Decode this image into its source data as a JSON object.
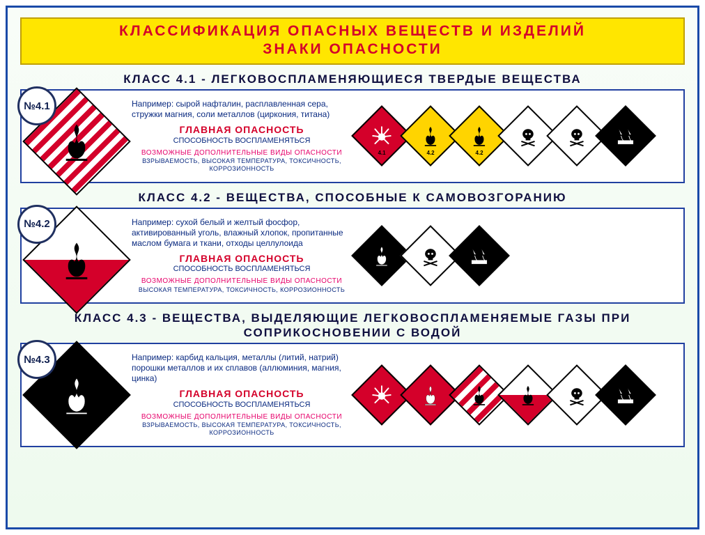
{
  "colors": {
    "frame": "#1a4aa8",
    "title_bg": "#ffe600",
    "title_text": "#d4002a",
    "header_text": "#101040",
    "panel_border": "#2040a0",
    "body_text": "#0a2a80",
    "danger_red": "#d4002a",
    "pink": "#e6006a",
    "red": "#d4002a",
    "yellow": "#ffd400",
    "black": "#000000",
    "white": "#ffffff"
  },
  "title": {
    "line1": "КЛАССИФИКАЦИЯ ОПАСНЫХ ВЕЩЕСТВ И ИЗДЕЛИЙ",
    "line2": "ЗНАКИ ОПАСНОСТИ"
  },
  "classes": [
    {
      "badge": "№4.1",
      "header": "КЛАСС 4.1 - ЛЕГКОВОСПЛАМЕНЯЮЩИЕСЯ ТВЕРДЫЕ ВЕЩЕСТВА",
      "main_sign": {
        "type": "stripes",
        "icon": "flame-black"
      },
      "example": "Например: сырой нафталин, расплавленная сера, стружки магния, соли металлов (циркония, титана)",
      "danger_h": "ГЛАВНАЯ ОПАСНОСТЬ",
      "danger_sub": "СПОСОБНОСТЬ ВОСПЛАМЕНЯТЬСЯ",
      "add_h": "ВОЗМОЖНЫЕ ДОПОЛНИТЕЛЬНЫЕ ВИДЫ ОПАСНОСТИ",
      "add_sub": "ВЗРЫВАЕМОСТЬ, ВЫСОКАЯ ТЕМПЕРАТУРА, ТОКСИЧНОСТЬ, КОРРОЗИОННОСТЬ",
      "mini_signs": [
        {
          "bg": "#d4002a",
          "icon": "burst-white",
          "label": "4.1"
        },
        {
          "bg": "#ffd400",
          "icon": "flame-black",
          "label": "4.2"
        },
        {
          "bg": "#ffd400",
          "icon": "flame-black",
          "label": "4.2"
        },
        {
          "bg": "#ffffff",
          "icon": "skull",
          "label": ""
        },
        {
          "bg": "#ffffff",
          "icon": "skull",
          "label": ""
        },
        {
          "bg": "#000000",
          "icon": "corrosive",
          "label": ""
        }
      ]
    },
    {
      "badge": "№4.2",
      "header": "КЛАСС 4.2 - ВЕЩЕСТВА, СПОСОБНЫЕ К САМОВОЗГОРАНИЮ",
      "main_sign": {
        "type": "half-rw",
        "icon": "flame-black"
      },
      "example": "Например: сухой белый и желтый фосфор, активированный уголь, влажный хлопок, пропитанные маслом бумага и ткани, отходы целлулоида",
      "danger_h": "ГЛАВНАЯ ОПАСНОСТЬ",
      "danger_sub": "СПОСОБНОСТЬ ВОСПЛАМЕНЯТЬСЯ",
      "add_h": "ВОЗМОЖНЫЕ ДОПОЛНИТЕЛЬНЫЕ ВИДЫ ОПАСНОСТИ",
      "add_sub": "ВЫСОКАЯ ТЕМПЕРАТУРА, ТОКСИЧНОСТЬ, КОРРОЗИОННОСТЬ",
      "mini_signs": [
        {
          "bg": "#000000",
          "icon": "flame-white",
          "label": ""
        },
        {
          "bg": "#ffffff",
          "icon": "skull",
          "label": ""
        },
        {
          "bg": "#000000",
          "icon": "corrosive",
          "label": ""
        }
      ]
    },
    {
      "badge": "№4.3",
      "header": "КЛАСС 4.3 - ВЕЩЕСТВА, ВЫДЕЛЯЮЩИЕ ЛЕГКОВОСПЛАМЕНЯЕМЫЕ ГАЗЫ ПРИ СОПРИКОСНОВЕНИИ С ВОДОЙ",
      "main_sign": {
        "type": "solid-black",
        "icon": "flame-white"
      },
      "example": "Например: карбид кальция, металлы (литий, натрий) порошки металлов и их сплавов (аллюминия, магния, цинка)",
      "danger_h": "ГЛАВНАЯ ОПАСНОСТЬ",
      "danger_sub": "СПОСОБНОСТЬ ВОСПЛАМЕНЯТЬСЯ",
      "add_h": "ВОЗМОЖНЫЕ ДОПОЛНИТЕЛЬНЫЕ ВИДЫ ОПАСНОСТИ",
      "add_sub": "ВЗРЫВАЕМОСТЬ, ВЫСОКАЯ ТЕМПЕРАТУРА, ТОКСИЧНОСТЬ, КОРРОЗИОННОСТЬ",
      "mini_signs": [
        {
          "bg": "#d4002a",
          "icon": "burst-white",
          "label": ""
        },
        {
          "bg": "#d4002a",
          "icon": "flame-white",
          "label": ""
        },
        {
          "bg": "stripes",
          "icon": "flame-black",
          "label": ""
        },
        {
          "bg": "half-rw",
          "icon": "flame-black",
          "label": ""
        },
        {
          "bg": "#ffffff",
          "icon": "skull",
          "label": ""
        },
        {
          "bg": "#000000",
          "icon": "corrosive",
          "label": ""
        }
      ]
    }
  ]
}
